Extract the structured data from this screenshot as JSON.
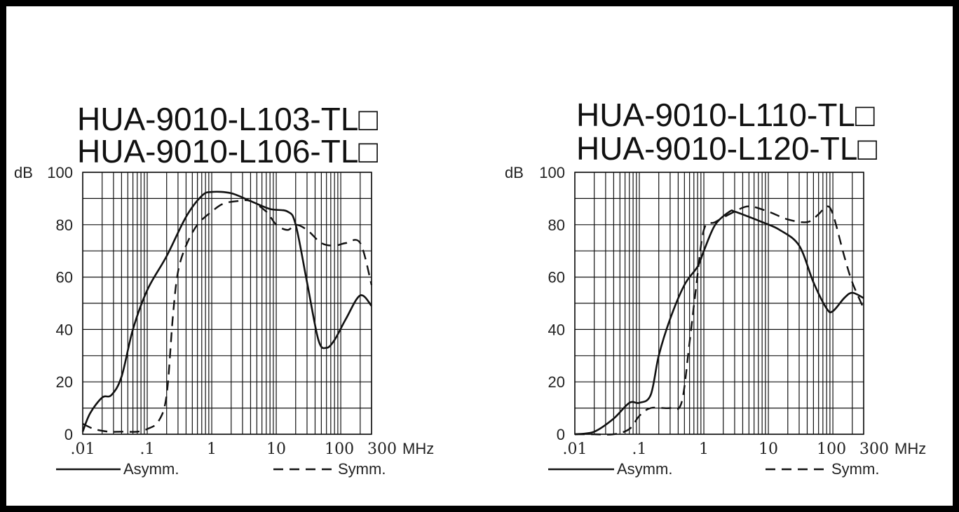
{
  "chart_data": [
    {
      "type": "line",
      "title_lines": [
        "HUA-9010-L103-TL□",
        "HUA-9010-L106-TL□"
      ],
      "ylabel": "dB",
      "xunit": "MHz",
      "x_scale": "log",
      "xlim": [
        0.01,
        300
      ],
      "ylim": [
        0,
        100
      ],
      "x_ticks": [
        ".01",
        ".1",
        "1",
        "10",
        "100",
        "300"
      ],
      "y_ticks": [
        "0",
        "20",
        "40",
        "60",
        "80",
        "100"
      ],
      "grid": true,
      "legend": [
        {
          "name": "Asymm.",
          "style": "solid"
        },
        {
          "name": "Symm.",
          "style": "dashed"
        }
      ],
      "series": [
        {
          "name": "Asymm.",
          "style": "solid",
          "x": [
            0.01,
            0.013,
            0.02,
            0.028,
            0.04,
            0.06,
            0.1,
            0.2,
            0.4,
            0.7,
            1.0,
            2.0,
            4.0,
            8.0,
            15.0,
            20.0,
            30.0,
            45.0,
            60.0,
            80.0,
            120.0,
            200.0,
            300.0
          ],
          "y": [
            1,
            8,
            14,
            15,
            22,
            40,
            55,
            68,
            83,
            91,
            92.5,
            92,
            89,
            86,
            85,
            80,
            58,
            36,
            33,
            36,
            44,
            53,
            49
          ]
        },
        {
          "name": "Symm.",
          "style": "dashed",
          "x": [
            0.01,
            0.015,
            0.025,
            0.04,
            0.07,
            0.1,
            0.15,
            0.2,
            0.25,
            0.3,
            0.4,
            0.6,
            1.0,
            1.5,
            2.5,
            4.0,
            7.0,
            10.0,
            15.0,
            20.0,
            30.0,
            50.0,
            80.0,
            120.0,
            200.0,
            300.0
          ],
          "y": [
            4,
            2,
            1,
            1,
            1,
            2,
            5,
            15,
            45,
            62,
            72,
            80,
            85,
            88,
            89,
            89,
            85,
            80,
            78,
            80,
            78,
            73,
            72,
            73,
            73,
            57
          ]
        }
      ]
    },
    {
      "type": "line",
      "title_lines": [
        "HUA-9010-L110-TL□",
        "HUA-9010-L120-TL□"
      ],
      "ylabel": "dB",
      "xunit": "MHz",
      "x_scale": "log",
      "xlim": [
        0.01,
        300
      ],
      "ylim": [
        0,
        100
      ],
      "x_ticks": [
        ".01",
        ".1",
        "1",
        "10",
        "100",
        "300"
      ],
      "y_ticks": [
        "0",
        "20",
        "40",
        "60",
        "80",
        "100"
      ],
      "grid": true,
      "legend": [
        {
          "name": "Asymm.",
          "style": "solid"
        },
        {
          "name": "Symm.",
          "style": "dashed"
        }
      ],
      "series": [
        {
          "name": "Asymm.",
          "style": "solid",
          "x": [
            0.01,
            0.02,
            0.04,
            0.07,
            0.1,
            0.15,
            0.2,
            0.3,
            0.5,
            0.8,
            1.0,
            1.5,
            2.5,
            3.0,
            5.0,
            8.0,
            15.0,
            30.0,
            50.0,
            80.0,
            100.0,
            150.0,
            200.0,
            300.0
          ],
          "y": [
            0,
            1,
            6,
            12,
            12,
            15,
            30,
            44,
            57,
            64,
            70,
            80,
            85,
            85,
            83,
            81,
            78,
            72,
            58,
            48,
            47,
            52,
            54,
            52
          ]
        },
        {
          "name": "Symm.",
          "style": "dashed",
          "x": [
            0.01,
            0.02,
            0.04,
            0.07,
            0.1,
            0.15,
            0.3,
            0.45,
            0.6,
            0.75,
            1.0,
            1.5,
            3.0,
            5.0,
            10.0,
            20.0,
            40.0,
            60.0,
            80.0,
            100.0,
            150.0,
            200.0,
            300.0
          ],
          "y": [
            0,
            0,
            0,
            2,
            7,
            10,
            10,
            12,
            35,
            55,
            78,
            81,
            85,
            87,
            85,
            82,
            81,
            84,
            87,
            84,
            68,
            58,
            48
          ]
        }
      ]
    }
  ]
}
